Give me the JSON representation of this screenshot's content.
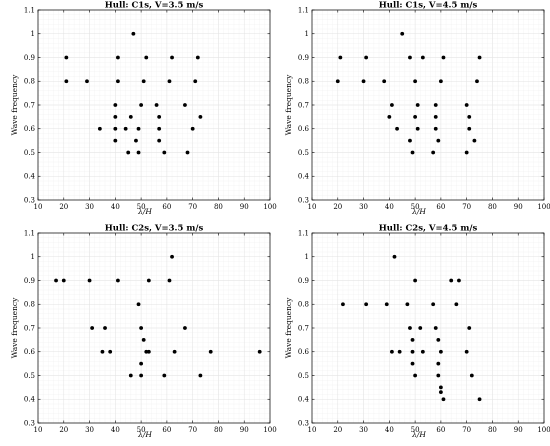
{
  "chart_data": [
    {
      "type": "scatter",
      "title": "Hull: C1s, V=3.5 m/s",
      "xlabel": "λ/H",
      "ylabel": "Wave frequency",
      "xlim": [
        10,
        100
      ],
      "ylim": [
        0.3,
        1.1
      ],
      "xticks": [
        10,
        20,
        30,
        40,
        50,
        60,
        70,
        80,
        90,
        100
      ],
      "yticks": [
        0.3,
        0.4,
        0.5,
        0.6,
        0.7,
        0.8,
        0.9,
        1.0,
        1.1
      ],
      "grid": true,
      "points": [
        [
          47,
          1.0
        ],
        [
          21,
          0.9
        ],
        [
          41,
          0.9
        ],
        [
          52,
          0.9
        ],
        [
          62,
          0.9
        ],
        [
          72,
          0.9
        ],
        [
          21,
          0.8
        ],
        [
          29,
          0.8
        ],
        [
          41,
          0.8
        ],
        [
          51,
          0.8
        ],
        [
          61,
          0.8
        ],
        [
          71,
          0.8
        ],
        [
          40,
          0.7
        ],
        [
          50,
          0.7
        ],
        [
          56,
          0.7
        ],
        [
          67,
          0.7
        ],
        [
          40,
          0.65
        ],
        [
          46,
          0.65
        ],
        [
          57,
          0.65
        ],
        [
          73,
          0.65
        ],
        [
          34,
          0.6
        ],
        [
          40,
          0.6
        ],
        [
          44,
          0.6
        ],
        [
          49,
          0.6
        ],
        [
          57,
          0.6
        ],
        [
          70,
          0.6
        ],
        [
          40,
          0.55
        ],
        [
          48,
          0.55
        ],
        [
          57,
          0.55
        ],
        [
          45,
          0.5
        ],
        [
          49,
          0.5
        ],
        [
          59,
          0.5
        ],
        [
          68,
          0.5
        ]
      ]
    },
    {
      "type": "scatter",
      "title": "Hull: C1s, V=4.5 m/s",
      "xlabel": "λ/H",
      "ylabel": "Wave frequency",
      "xlim": [
        10,
        100
      ],
      "ylim": [
        0.3,
        1.1
      ],
      "xticks": [
        10,
        20,
        30,
        40,
        50,
        60,
        70,
        80,
        90,
        100
      ],
      "yticks": [
        0.3,
        0.4,
        0.5,
        0.6,
        0.7,
        0.8,
        0.9,
        1.0,
        1.1
      ],
      "grid": true,
      "points": [
        [
          45,
          1.0
        ],
        [
          21,
          0.9
        ],
        [
          31,
          0.9
        ],
        [
          48,
          0.9
        ],
        [
          53,
          0.9
        ],
        [
          61,
          0.9
        ],
        [
          75,
          0.9
        ],
        [
          20,
          0.8
        ],
        [
          30,
          0.8
        ],
        [
          38,
          0.8
        ],
        [
          50,
          0.8
        ],
        [
          60,
          0.8
        ],
        [
          74,
          0.8
        ],
        [
          41,
          0.7
        ],
        [
          51,
          0.7
        ],
        [
          58,
          0.7
        ],
        [
          70,
          0.7
        ],
        [
          40,
          0.65
        ],
        [
          50,
          0.65
        ],
        [
          58,
          0.65
        ],
        [
          71,
          0.65
        ],
        [
          43,
          0.6
        ],
        [
          51,
          0.6
        ],
        [
          58,
          0.6
        ],
        [
          71,
          0.6
        ],
        [
          48,
          0.55
        ],
        [
          59,
          0.55
        ],
        [
          73,
          0.55
        ],
        [
          49,
          0.5
        ],
        [
          57,
          0.5
        ],
        [
          70,
          0.5
        ]
      ]
    },
    {
      "type": "scatter",
      "title": "Hull: C2s, V=3.5 m/s",
      "xlabel": "λ/H",
      "ylabel": "Wave frequency",
      "xlim": [
        10,
        100
      ],
      "ylim": [
        0.3,
        1.1
      ],
      "xticks": [
        10,
        20,
        30,
        40,
        50,
        60,
        70,
        80,
        90,
        100
      ],
      "yticks": [
        0.3,
        0.4,
        0.5,
        0.6,
        0.7,
        0.8,
        0.9,
        1.0,
        1.1
      ],
      "grid": true,
      "points": [
        [
          62,
          1.0
        ],
        [
          17,
          0.9
        ],
        [
          20,
          0.9
        ],
        [
          30,
          0.9
        ],
        [
          41,
          0.9
        ],
        [
          53,
          0.9
        ],
        [
          61,
          0.9
        ],
        [
          49,
          0.8
        ],
        [
          31,
          0.7
        ],
        [
          36,
          0.7
        ],
        [
          50,
          0.7
        ],
        [
          67,
          0.7
        ],
        [
          51,
          0.65
        ],
        [
          35,
          0.6
        ],
        [
          38,
          0.6
        ],
        [
          52,
          0.6
        ],
        [
          53,
          0.6
        ],
        [
          63,
          0.6
        ],
        [
          77,
          0.6
        ],
        [
          96,
          0.6
        ],
        [
          50,
          0.55
        ],
        [
          46,
          0.5
        ],
        [
          50,
          0.5
        ],
        [
          59,
          0.5
        ],
        [
          73,
          0.5
        ]
      ]
    },
    {
      "type": "scatter",
      "title": "Hull: C2s, V=4.5 m/s",
      "xlabel": "λ/H",
      "ylabel": "Wave frequency",
      "xlim": [
        10,
        100
      ],
      "ylim": [
        0.3,
        1.1
      ],
      "xticks": [
        10,
        20,
        30,
        40,
        50,
        60,
        70,
        80,
        90,
        100
      ],
      "yticks": [
        0.3,
        0.4,
        0.5,
        0.6,
        0.7,
        0.8,
        0.9,
        1.0,
        1.1
      ],
      "grid": true,
      "points": [
        [
          42,
          1.0
        ],
        [
          50,
          0.9
        ],
        [
          64,
          0.9
        ],
        [
          67,
          0.9
        ],
        [
          22,
          0.8
        ],
        [
          31,
          0.8
        ],
        [
          39,
          0.8
        ],
        [
          47,
          0.8
        ],
        [
          57,
          0.8
        ],
        [
          66,
          0.8
        ],
        [
          48,
          0.7
        ],
        [
          52,
          0.7
        ],
        [
          58,
          0.7
        ],
        [
          71,
          0.7
        ],
        [
          49,
          0.65
        ],
        [
          59,
          0.65
        ],
        [
          41,
          0.6
        ],
        [
          44,
          0.6
        ],
        [
          49,
          0.6
        ],
        [
          53,
          0.6
        ],
        [
          60,
          0.6
        ],
        [
          70,
          0.6
        ],
        [
          49,
          0.55
        ],
        [
          59,
          0.55
        ],
        [
          50,
          0.5
        ],
        [
          59,
          0.5
        ],
        [
          72,
          0.5
        ],
        [
          60,
          0.45
        ],
        [
          60,
          0.43
        ],
        [
          61,
          0.4
        ],
        [
          75,
          0.4
        ]
      ]
    }
  ]
}
